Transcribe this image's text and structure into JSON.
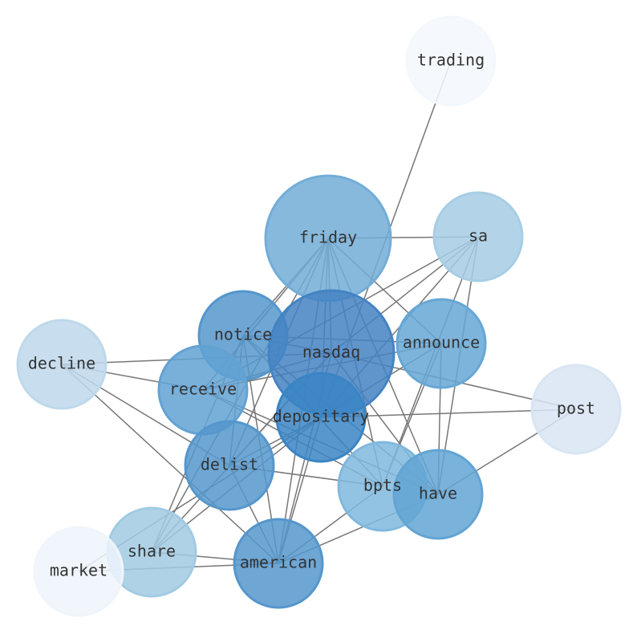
{
  "nodes": [
    {
      "label": "trading"
    },
    {
      "label": "friday"
    },
    {
      "label": "sa"
    },
    {
      "label": "notice"
    },
    {
      "label": "nasdaq"
    },
    {
      "label": "announce"
    },
    {
      "label": "decline"
    },
    {
      "label": "receive"
    },
    {
      "label": "post"
    },
    {
      "label": "depositary"
    },
    {
      "label": "delist"
    },
    {
      "label": "bpts"
    },
    {
      "label": "have"
    },
    {
      "label": "share"
    },
    {
      "label": "american"
    },
    {
      "label": "market"
    }
  ]
}
